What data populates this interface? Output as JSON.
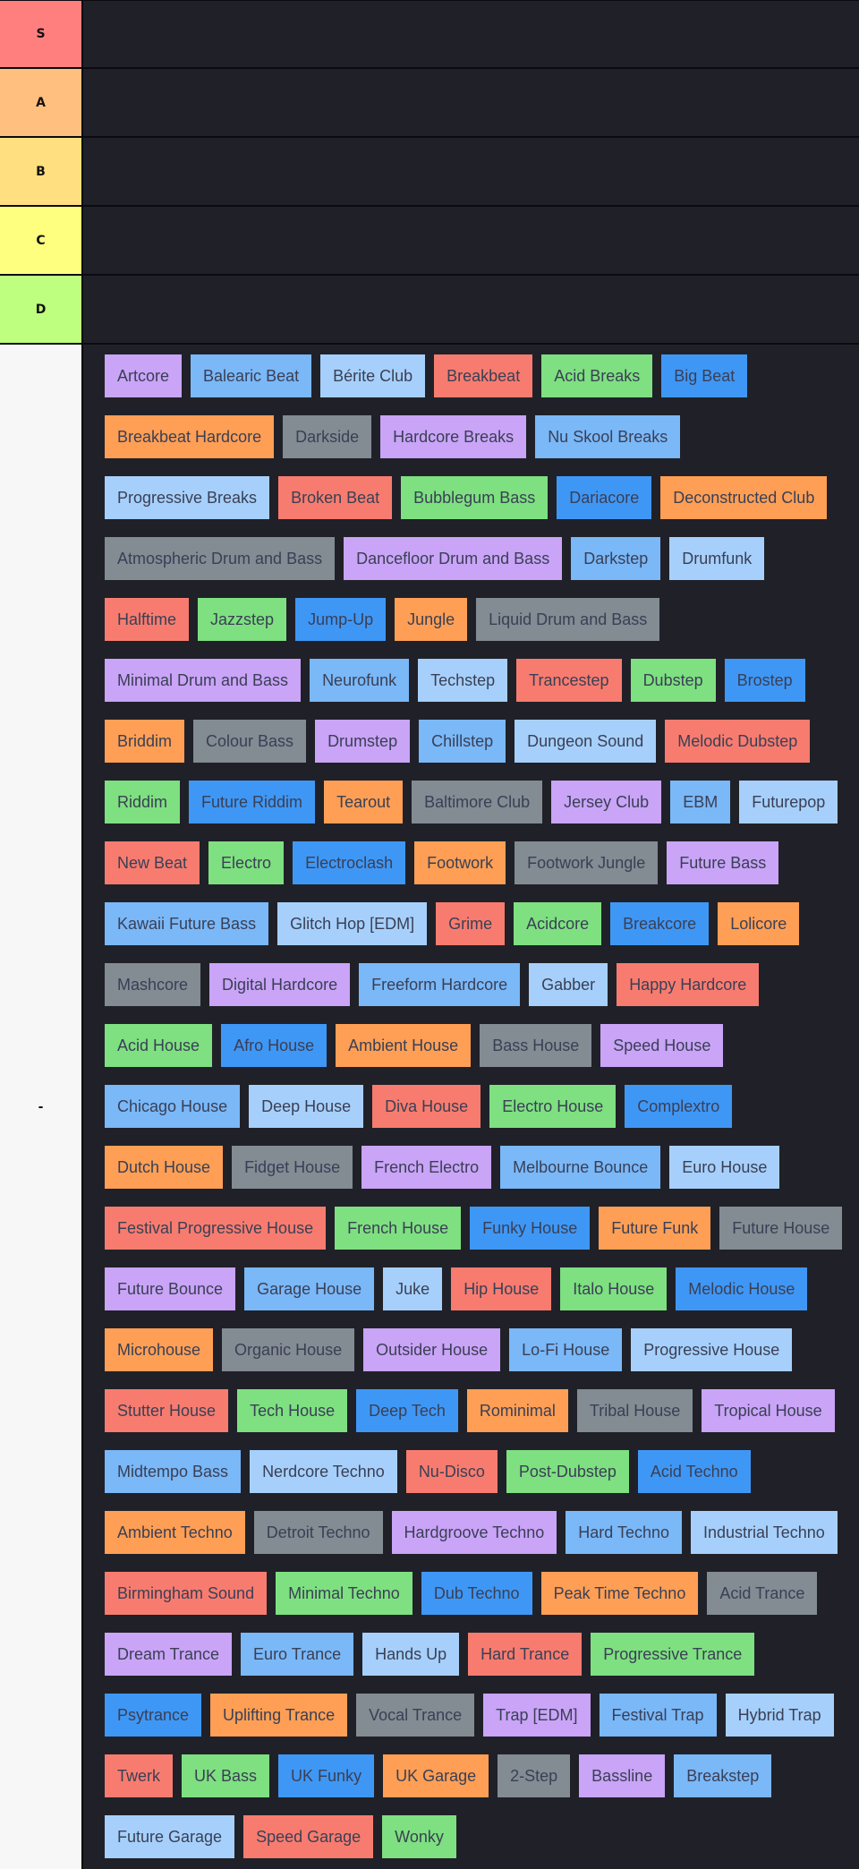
{
  "tiers": [
    {
      "label": "S",
      "color": "#ff7f7f",
      "items": []
    },
    {
      "label": "A",
      "color": "#ffbf7f",
      "items": []
    },
    {
      "label": "B",
      "color": "#ffdf7f",
      "items": []
    },
    {
      "label": "C",
      "color": "#ffff7f",
      "items": []
    },
    {
      "label": "D",
      "color": "#bfff7f",
      "items": []
    }
  ],
  "unranked": {
    "label": "-",
    "color": "#f7f7f7",
    "items": [
      {
        "label": "Artcore",
        "color": "purple"
      },
      {
        "label": "Balearic Beat",
        "color": "blue"
      },
      {
        "label": "Bérite Club",
        "color": "lightblue"
      },
      {
        "label": "Breakbeat",
        "color": "red"
      },
      {
        "label": "Acid Breaks",
        "color": "green"
      },
      {
        "label": "Big Beat",
        "color": "dblue"
      },
      {
        "label": "Breakbeat Hardcore",
        "color": "orange"
      },
      {
        "label": "Darkside",
        "color": "gray"
      },
      {
        "label": "Hardcore Breaks",
        "color": "purple"
      },
      {
        "label": "Nu Skool Breaks",
        "color": "blue"
      },
      {
        "label": "Progressive Breaks",
        "color": "lightblue"
      },
      {
        "label": "Broken Beat",
        "color": "red"
      },
      {
        "label": "Bubblegum Bass",
        "color": "green"
      },
      {
        "label": "Dariacore",
        "color": "dblue"
      },
      {
        "label": "Deconstructed Club",
        "color": "orange"
      },
      {
        "label": "Atmospheric Drum and Bass",
        "color": "gray"
      },
      {
        "label": "Dancefloor Drum and Bass",
        "color": "purple"
      },
      {
        "label": "Darkstep",
        "color": "blue"
      },
      {
        "label": "Drumfunk",
        "color": "lightblue"
      },
      {
        "label": "Halftime",
        "color": "red"
      },
      {
        "label": "Jazzstep",
        "color": "green"
      },
      {
        "label": "Jump-Up",
        "color": "dblue"
      },
      {
        "label": "Jungle",
        "color": "orange"
      },
      {
        "label": "Liquid Drum and Bass",
        "color": "gray"
      },
      {
        "label": "Minimal Drum and Bass",
        "color": "purple"
      },
      {
        "label": "Neurofunk",
        "color": "blue"
      },
      {
        "label": "Techstep",
        "color": "lightblue"
      },
      {
        "label": "Trancestep",
        "color": "red"
      },
      {
        "label": "Dubstep",
        "color": "green"
      },
      {
        "label": "Brostep",
        "color": "dblue"
      },
      {
        "label": "Briddim",
        "color": "orange"
      },
      {
        "label": "Colour Bass",
        "color": "gray"
      },
      {
        "label": "Drumstep",
        "color": "purple"
      },
      {
        "label": "Chillstep",
        "color": "blue"
      },
      {
        "label": "Dungeon Sound",
        "color": "lightblue"
      },
      {
        "label": "Melodic Dubstep",
        "color": "red"
      },
      {
        "label": "Riddim",
        "color": "green"
      },
      {
        "label": "Future Riddim",
        "color": "dblue"
      },
      {
        "label": "Tearout",
        "color": "orange"
      },
      {
        "label": "Baltimore Club",
        "color": "gray"
      },
      {
        "label": "Jersey Club",
        "color": "purple"
      },
      {
        "label": "EBM",
        "color": "blue"
      },
      {
        "label": "Futurepop",
        "color": "lightblue"
      },
      {
        "label": "New Beat",
        "color": "red"
      },
      {
        "label": "Electro",
        "color": "green"
      },
      {
        "label": "Electroclash",
        "color": "dblue"
      },
      {
        "label": "Footwork",
        "color": "orange"
      },
      {
        "label": "Footwork Jungle",
        "color": "gray"
      },
      {
        "label": "Future Bass",
        "color": "purple"
      },
      {
        "label": "Kawaii Future Bass",
        "color": "blue"
      },
      {
        "label": "Glitch Hop [EDM]",
        "color": "lightblue"
      },
      {
        "label": "Grime",
        "color": "red"
      },
      {
        "label": "Acidcore",
        "color": "green"
      },
      {
        "label": "Breakcore",
        "color": "dblue"
      },
      {
        "label": "Lolicore",
        "color": "orange"
      },
      {
        "label": "Mashcore",
        "color": "gray"
      },
      {
        "label": "Digital Hardcore",
        "color": "purple"
      },
      {
        "label": "Freeform Hardcore",
        "color": "blue"
      },
      {
        "label": "Gabber",
        "color": "lightblue"
      },
      {
        "label": "Happy Hardcore",
        "color": "red"
      },
      {
        "label": "Acid House",
        "color": "green"
      },
      {
        "label": "Afro House",
        "color": "dblue"
      },
      {
        "label": "Ambient House",
        "color": "orange"
      },
      {
        "label": "Bass House",
        "color": "gray"
      },
      {
        "label": "Speed House",
        "color": "purple"
      },
      {
        "label": "Chicago House",
        "color": "blue"
      },
      {
        "label": "Deep House",
        "color": "lightblue"
      },
      {
        "label": "Diva House",
        "color": "red"
      },
      {
        "label": "Electro House",
        "color": "green"
      },
      {
        "label": "Complextro",
        "color": "dblue"
      },
      {
        "label": "Dutch House",
        "color": "orange"
      },
      {
        "label": "Fidget House",
        "color": "gray"
      },
      {
        "label": "French Electro",
        "color": "purple"
      },
      {
        "label": "Melbourne Bounce",
        "color": "blue"
      },
      {
        "label": "Euro House",
        "color": "lightblue"
      },
      {
        "label": "Festival Progressive House",
        "color": "red"
      },
      {
        "label": "French House",
        "color": "green"
      },
      {
        "label": "Funky House",
        "color": "dblue"
      },
      {
        "label": "Future Funk",
        "color": "orange"
      },
      {
        "label": "Future House",
        "color": "gray"
      },
      {
        "label": "Future Bounce",
        "color": "purple"
      },
      {
        "label": "Garage House",
        "color": "blue"
      },
      {
        "label": "Juke",
        "color": "lightblue"
      },
      {
        "label": "Hip House",
        "color": "red"
      },
      {
        "label": "Italo House",
        "color": "green"
      },
      {
        "label": "Melodic House",
        "color": "dblue"
      },
      {
        "label": "Microhouse",
        "color": "orange"
      },
      {
        "label": "Organic House",
        "color": "gray"
      },
      {
        "label": "Outsider House",
        "color": "purple"
      },
      {
        "label": "Lo-Fi House",
        "color": "blue"
      },
      {
        "label": "Progressive House",
        "color": "lightblue"
      },
      {
        "label": "Stutter House",
        "color": "red"
      },
      {
        "label": "Tech House",
        "color": "green"
      },
      {
        "label": "Deep Tech",
        "color": "dblue"
      },
      {
        "label": "Rominimal",
        "color": "orange"
      },
      {
        "label": "Tribal House",
        "color": "gray"
      },
      {
        "label": "Tropical House",
        "color": "purple"
      },
      {
        "label": "Midtempo Bass",
        "color": "blue"
      },
      {
        "label": "Nerdcore Techno",
        "color": "lightblue"
      },
      {
        "label": "Nu-Disco",
        "color": "red"
      },
      {
        "label": "Post-Dubstep",
        "color": "green"
      },
      {
        "label": "Acid Techno",
        "color": "dblue"
      },
      {
        "label": "Ambient Techno",
        "color": "orange"
      },
      {
        "label": "Detroit Techno",
        "color": "gray"
      },
      {
        "label": "Hardgroove Techno",
        "color": "purple"
      },
      {
        "label": "Hard Techno",
        "color": "blue"
      },
      {
        "label": "Industrial Techno",
        "color": "lightblue"
      },
      {
        "label": "Birmingham Sound",
        "color": "red"
      },
      {
        "label": "Minimal Techno",
        "color": "green"
      },
      {
        "label": "Dub Techno",
        "color": "dblue"
      },
      {
        "label": "Peak Time Techno",
        "color": "orange"
      },
      {
        "label": "Acid Trance",
        "color": "gray"
      },
      {
        "label": "Dream Trance",
        "color": "purple"
      },
      {
        "label": "Euro Trance",
        "color": "blue"
      },
      {
        "label": "Hands Up",
        "color": "lightblue"
      },
      {
        "label": "Hard Trance",
        "color": "red"
      },
      {
        "label": "Progressive Trance",
        "color": "green"
      },
      {
        "label": "Psytrance",
        "color": "dblue"
      },
      {
        "label": "Uplifting Trance",
        "color": "orange"
      },
      {
        "label": "Vocal Trance",
        "color": "gray"
      },
      {
        "label": "Trap [EDM]",
        "color": "purple"
      },
      {
        "label": "Festival Trap",
        "color": "blue"
      },
      {
        "label": "Hybrid Trap",
        "color": "lightblue"
      },
      {
        "label": "Twerk",
        "color": "red"
      },
      {
        "label": "UK Bass",
        "color": "green"
      },
      {
        "label": "UK Funky",
        "color": "dblue"
      },
      {
        "label": "UK Garage",
        "color": "orange"
      },
      {
        "label": "2-Step",
        "color": "gray"
      },
      {
        "label": "Bassline",
        "color": "purple"
      },
      {
        "label": "Breakstep",
        "color": "blue"
      },
      {
        "label": "Future Garage",
        "color": "lightblue"
      },
      {
        "label": "Speed Garage",
        "color": "red"
      },
      {
        "label": "Wonky",
        "color": "green"
      }
    ]
  }
}
